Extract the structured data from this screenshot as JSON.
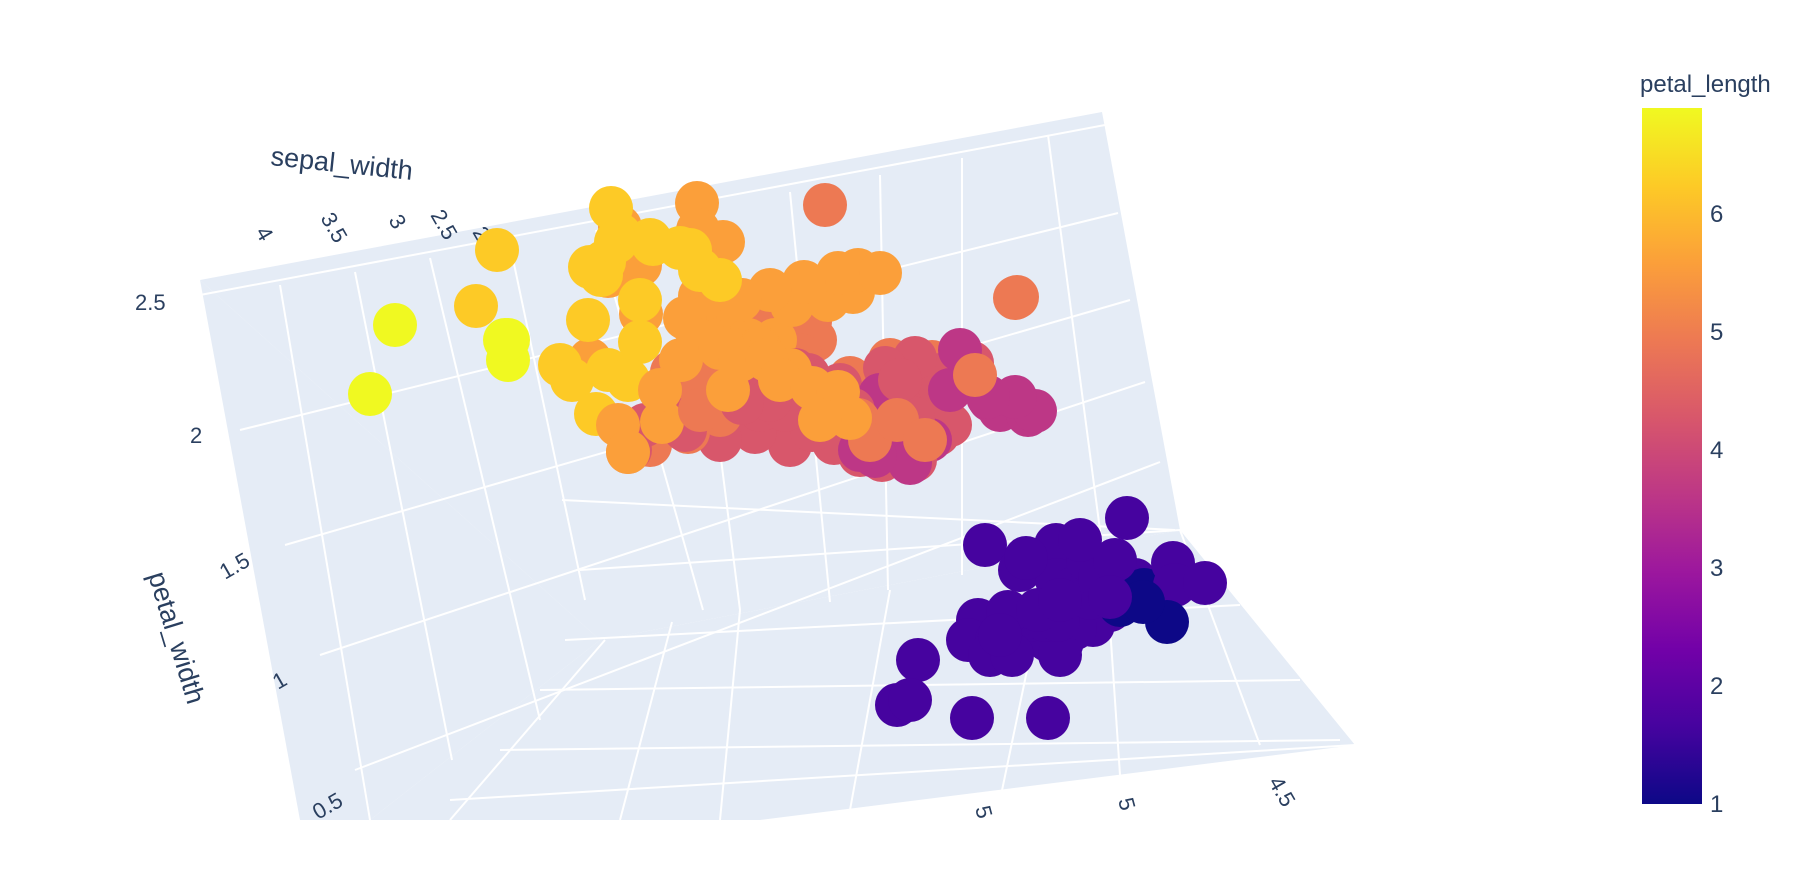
{
  "chart_data": {
    "type": "scatter",
    "subtype": "3d-scatter",
    "axes": {
      "sepal_width": {
        "label": "sepal_width",
        "ticks": [
          "4",
          "3.5",
          "3",
          "2.5",
          "2"
        ]
      },
      "petal_width": {
        "label": "petal_width",
        "ticks": [
          "2.5",
          "2",
          "1.5",
          "1",
          "0.5"
        ]
      },
      "third_axis": {
        "ticks": [
          "5",
          "5",
          "4.5"
        ]
      }
    },
    "colorbar": {
      "title": "petal_length",
      "ticks": [
        "6",
        "5",
        "4",
        "3",
        "2",
        "1"
      ],
      "range": [
        1,
        6.9
      ],
      "colors": [
        "#0d0887",
        "#46039f",
        "#7201a8",
        "#9c179e",
        "#bd3786",
        "#d8576b",
        "#ed7953",
        "#fb9f3a",
        "#fdca26",
        "#f0f921"
      ]
    },
    "grid": true,
    "legend": "right"
  }
}
